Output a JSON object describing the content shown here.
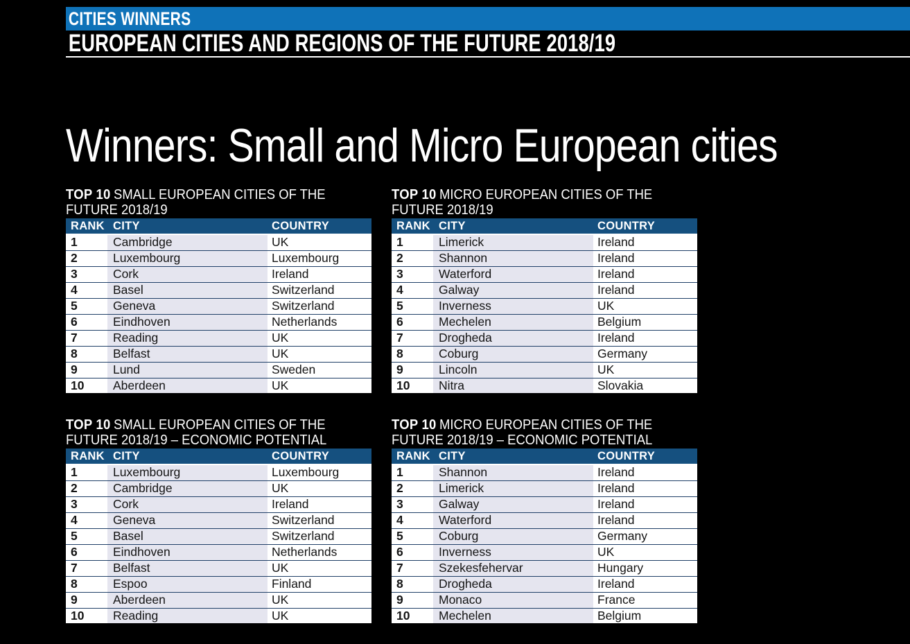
{
  "header": {
    "kicker": "CITIES WINNERS",
    "title": "EUROPEAN CITIES AND REGIONS OF THE FUTURE 2018/19"
  },
  "main": {
    "title": "Winners: Small and Micro European cities"
  },
  "columns": {
    "rank": "RANK",
    "city": "CITY",
    "country": "COUNTRY"
  },
  "colors": {
    "top_bar_blue": "#0f72b8",
    "table_header_blue": "#15507f",
    "city_column_bg": "#e5e5ef",
    "row_divider": "#1e3e66",
    "page_background": "#000000",
    "title_text": "#ffffff",
    "cell_text": "#141414"
  },
  "tables": [
    {
      "id": "small-cities",
      "title_bold": "TOP 10",
      "title_rest": "SMALL EUROPEAN CITIES OF THE FUTURE 2018/19",
      "rows": [
        {
          "rank": "1",
          "city": "Cambridge",
          "country": "UK"
        },
        {
          "rank": "2",
          "city": "Luxembourg",
          "country": "Luxembourg"
        },
        {
          "rank": "3",
          "city": "Cork",
          "country": "Ireland"
        },
        {
          "rank": "4",
          "city": "Basel",
          "country": "Switzerland"
        },
        {
          "rank": "5",
          "city": "Geneva",
          "country": "Switzerland"
        },
        {
          "rank": "6",
          "city": "Eindhoven",
          "country": "Netherlands"
        },
        {
          "rank": "7",
          "city": "Reading",
          "country": "UK"
        },
        {
          "rank": "8",
          "city": "Belfast",
          "country": "UK"
        },
        {
          "rank": "9",
          "city": "Lund",
          "country": "Sweden"
        },
        {
          "rank": "10",
          "city": "Aberdeen",
          "country": "UK"
        }
      ]
    },
    {
      "id": "micro-cities",
      "title_bold": "TOP 10",
      "title_rest": "MICRO EUROPEAN CITIES OF THE FUTURE 2018/19",
      "rows": [
        {
          "rank": "1",
          "city": "Limerick",
          "country": "Ireland"
        },
        {
          "rank": "2",
          "city": "Shannon",
          "country": "Ireland"
        },
        {
          "rank": "3",
          "city": "Waterford",
          "country": "Ireland"
        },
        {
          "rank": "4",
          "city": "Galway",
          "country": "Ireland"
        },
        {
          "rank": "5",
          "city": "Inverness",
          "country": "UK"
        },
        {
          "rank": "6",
          "city": "Mechelen",
          "country": "Belgium"
        },
        {
          "rank": "7",
          "city": "Drogheda",
          "country": "Ireland"
        },
        {
          "rank": "8",
          "city": "Coburg",
          "country": "Germany"
        },
        {
          "rank": "9",
          "city": "Lincoln",
          "country": "UK"
        },
        {
          "rank": "10",
          "city": "Nitra",
          "country": "Slovakia"
        }
      ]
    },
    {
      "id": "small-cities-economic-potential",
      "title_bold": "TOP 10",
      "title_rest": "SMALL EUROPEAN CITIES OF THE FUTURE 2018/19 – ECONOMIC POTENTIAL",
      "rows": [
        {
          "rank": "1",
          "city": "Luxembourg",
          "country": "Luxembourg"
        },
        {
          "rank": "2",
          "city": "Cambridge",
          "country": "UK"
        },
        {
          "rank": "3",
          "city": "Cork",
          "country": "Ireland"
        },
        {
          "rank": "4",
          "city": "Geneva",
          "country": "Switzerland"
        },
        {
          "rank": "5",
          "city": "Basel",
          "country": "Switzerland"
        },
        {
          "rank": "6",
          "city": "Eindhoven",
          "country": "Netherlands"
        },
        {
          "rank": "7",
          "city": "Belfast",
          "country": "UK"
        },
        {
          "rank": "8",
          "city": "Espoo",
          "country": "Finland"
        },
        {
          "rank": "9",
          "city": "Aberdeen",
          "country": "UK"
        },
        {
          "rank": "10",
          "city": "Reading",
          "country": "UK"
        }
      ]
    },
    {
      "id": "micro-cities-economic-potential",
      "title_bold": "TOP 10",
      "title_rest": "MICRO EUROPEAN CITIES OF THE FUTURE 2018/19 – ECONOMIC POTENTIAL",
      "rows": [
        {
          "rank": "1",
          "city": "Shannon",
          "country": "Ireland"
        },
        {
          "rank": "2",
          "city": "Limerick",
          "country": "Ireland"
        },
        {
          "rank": "3",
          "city": "Galway",
          "country": "Ireland"
        },
        {
          "rank": "4",
          "city": "Waterford",
          "country": "Ireland"
        },
        {
          "rank": "5",
          "city": "Coburg",
          "country": "Germany"
        },
        {
          "rank": "6",
          "city": "Inverness",
          "country": "UK"
        },
        {
          "rank": "7",
          "city": "Szekesfehervar",
          "country": "Hungary"
        },
        {
          "rank": "8",
          "city": "Drogheda",
          "country": "Ireland"
        },
        {
          "rank": "9",
          "city": "Monaco",
          "country": "France"
        },
        {
          "rank": "10",
          "city": "Mechelen",
          "country": "Belgium"
        }
      ]
    }
  ]
}
